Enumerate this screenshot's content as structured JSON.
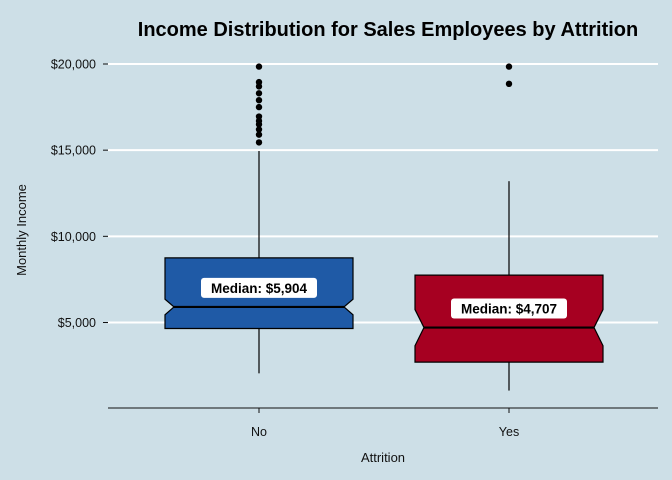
{
  "chart_data": {
    "type": "boxplot",
    "title": "Income Distribution for Sales Employees by Attrition",
    "xlabel": "Attrition",
    "ylabel": "Monthly Income",
    "categories": [
      "No",
      "Yes"
    ],
    "ylim": [
      1000,
      21000
    ],
    "yticks": [
      5000,
      10000,
      15000,
      20000
    ],
    "ytick_labels": [
      "$5,000",
      "$10,000",
      "$15,000",
      "$20,000"
    ],
    "grid": "horizontal",
    "notched": true,
    "boxes": [
      {
        "category": "No",
        "color": "#1f5aa6",
        "q1": 4650,
        "median": 5904,
        "q3": 8750,
        "notch_low": 5450,
        "notch_high": 6350,
        "whisker_low": 2050,
        "whisker_high": 14950,
        "outliers": [
          15450,
          15900,
          16200,
          16500,
          16700,
          16950,
          17500,
          17900,
          18300,
          18700,
          18950,
          19850
        ],
        "median_label": "Median: $5,904"
      },
      {
        "category": "Yes",
        "color": "#a60021",
        "q1": 2700,
        "median": 4707,
        "q3": 7750,
        "notch_low": 3650,
        "notch_high": 5750,
        "whisker_low": 1050,
        "whisker_high": 13200,
        "outliers": [
          18850,
          19850
        ],
        "median_label": "Median: $4,707"
      }
    ]
  }
}
